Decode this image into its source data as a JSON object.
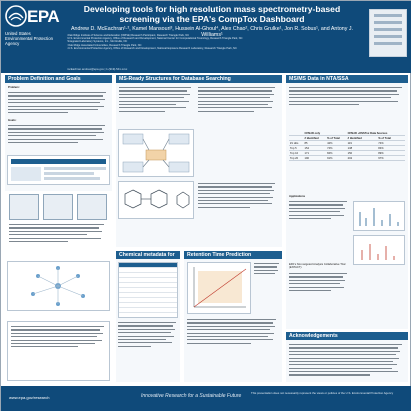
{
  "header": {
    "agency_abbr": "EPA",
    "agency_name_line1": "United States",
    "agency_name_line2": "Environmental Protection",
    "agency_name_line3": "Agency",
    "title": "Developing tools for high resolution mass spectrometry-based screening via the EPA's CompTox Dashboard",
    "authors": "Andrew D. McEachran¹·², Kamel Mansouri³, Hussein Al-Ghoul⁴, Alex Chao², Chris Grulke¹, Jon R. Sobus¹, and Antony J. Williams¹",
    "affiliations": [
      "¹Oak Ridge Institute of Science and Education (ORISE) Research Participant, Research Triangle Park, NC",
      "²U.S. Environmental Protection Agency, Office of Research and Development, National Center for Computational Toxicology, Research Triangle Park, NC",
      "³Integrated Laboratory Systems, Inc., Morrisville, NC",
      "⁴Oak Ridge Associated Universities, Research Triangle Park, NC",
      "⁵U.S. Environmental Protection Agency, Office of Research and Development, National Exposure Research Laboratory, Research Triangle Park, NC"
    ],
    "contact": "mcEachran.andrew@epa.gov | 1-(919)-541-xxxx"
  },
  "sections": {
    "problem": {
      "title": "Problem Definition and Goals",
      "problem_label": "Problem:",
      "goals_label": "Goals:"
    },
    "ms_ready": {
      "title": "MS-Ready Structures for Database Searching"
    },
    "candidate": {
      "title": "Chemical metadata for ranking"
    },
    "retention": {
      "title": "Retention Time Prediction"
    },
    "ms_ms": {
      "title": "MS/MS Data in NTA/SSA"
    },
    "acknowledgements": {
      "title": "Acknowledgements"
    }
  },
  "ms_table": {
    "group1": "CFM-ID only",
    "group2": "CFM-ID +DSSTox Data Sources",
    "col_hit": "# Identified",
    "col_pct": "% of Total",
    "rows": [
      {
        "label": "#1 Hits",
        "a": "85",
        "b": "42%",
        "c": "119",
        "d": "74%"
      },
      {
        "label": "Top 5",
        "a": "154",
        "b": "74%",
        "c": "138",
        "d": "84%"
      },
      {
        "label": "Top 10",
        "a": "171",
        "b": "84%",
        "c": "150",
        "d": "89%"
      },
      {
        "label": "Top 20",
        "a": "190",
        "b": "91%",
        "c": "202",
        "d": "97%"
      }
    ],
    "subhead1": "Applications",
    "subhead2": "EPA's Non-targeted Analysis Collaborative Trial (ENTACT):"
  },
  "footer": {
    "url": "www.epa.gov/research",
    "tagline": "Innovative Research for a Sustainable Future",
    "disclaimer": "This presentation does not necessarily represent the views or policies of the U.S. Environmental Protection Agency"
  },
  "colors": {
    "header_bg": "#0f4a7a",
    "panel_head": "#1d5e8f",
    "panel_bg": "#f5f8fb"
  }
}
